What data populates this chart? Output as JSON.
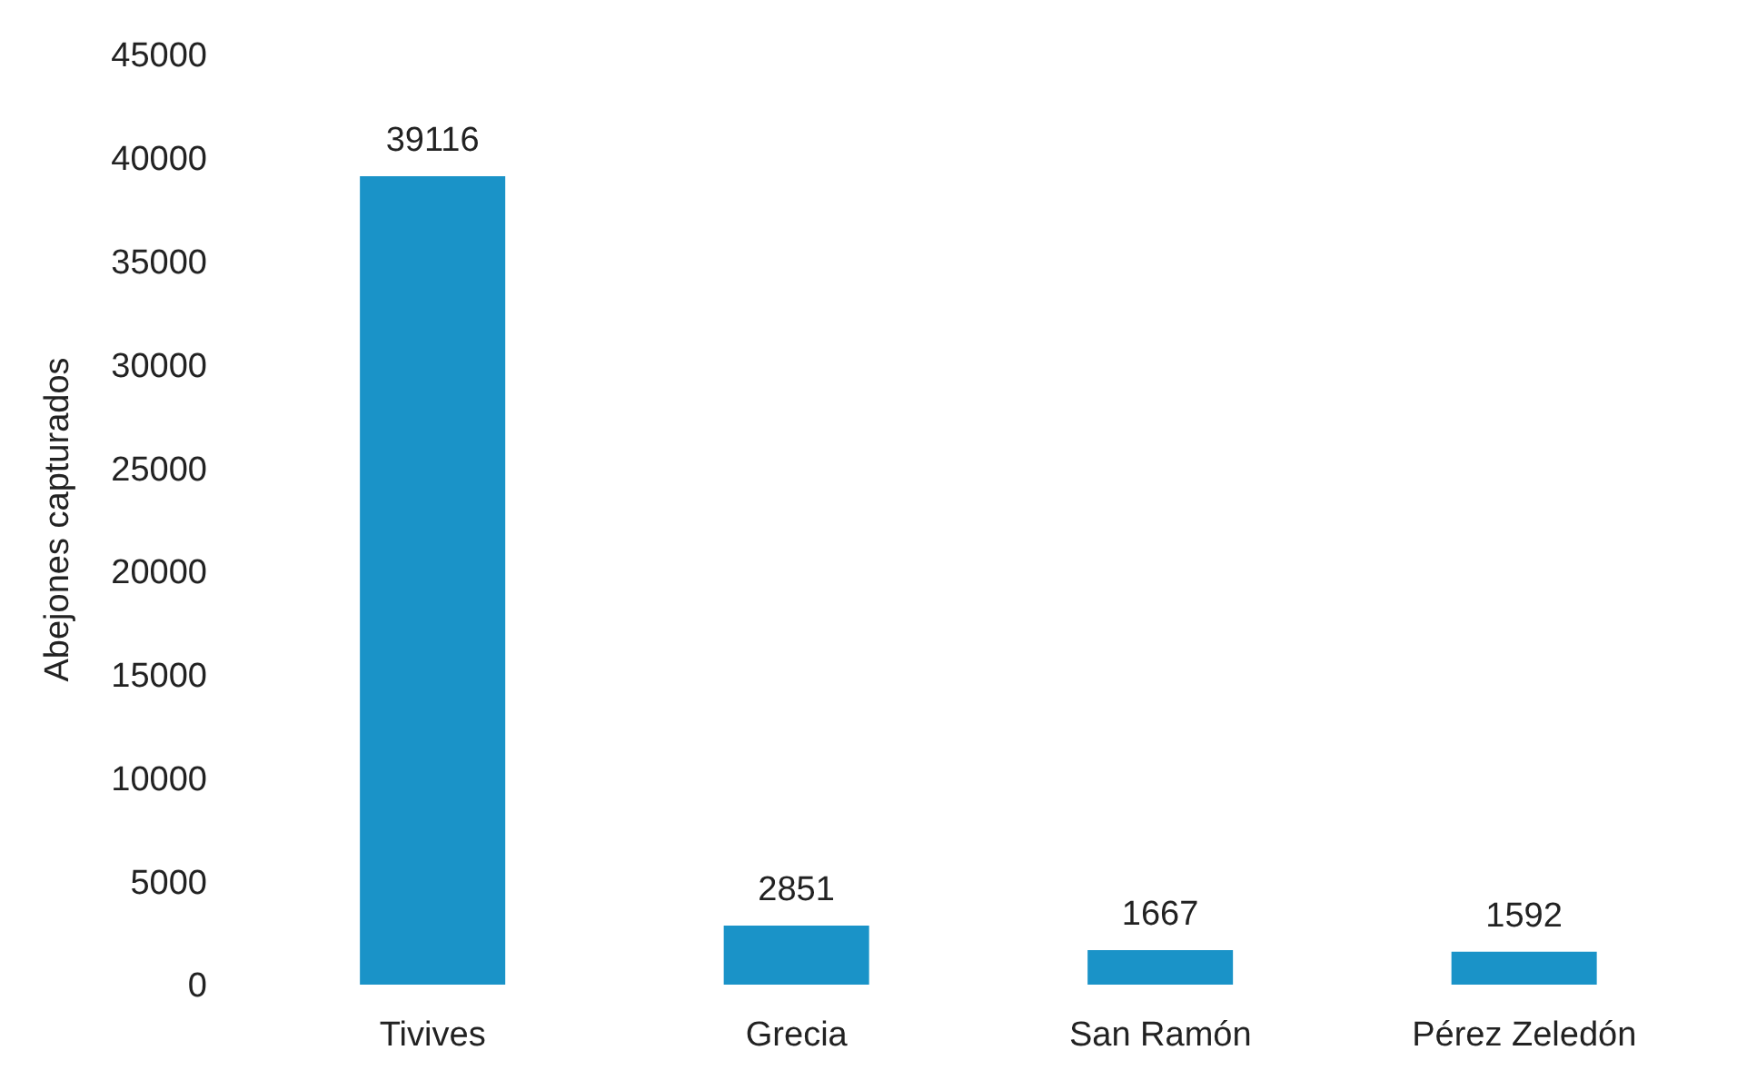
{
  "chart_data": {
    "type": "bar",
    "ylabel": "Abejones capturados",
    "categories": [
      "Tivives",
      "Grecia",
      "San Ramón",
      "Pérez Zeledón"
    ],
    "values": [
      39116,
      2851,
      1667,
      1592
    ],
    "color": "#1a93c8",
    "ylim": [
      0,
      45000
    ],
    "yticks": [
      0,
      5000,
      10000,
      15000,
      20000,
      25000,
      30000,
      35000,
      40000,
      45000
    ],
    "data_labels": true
  }
}
